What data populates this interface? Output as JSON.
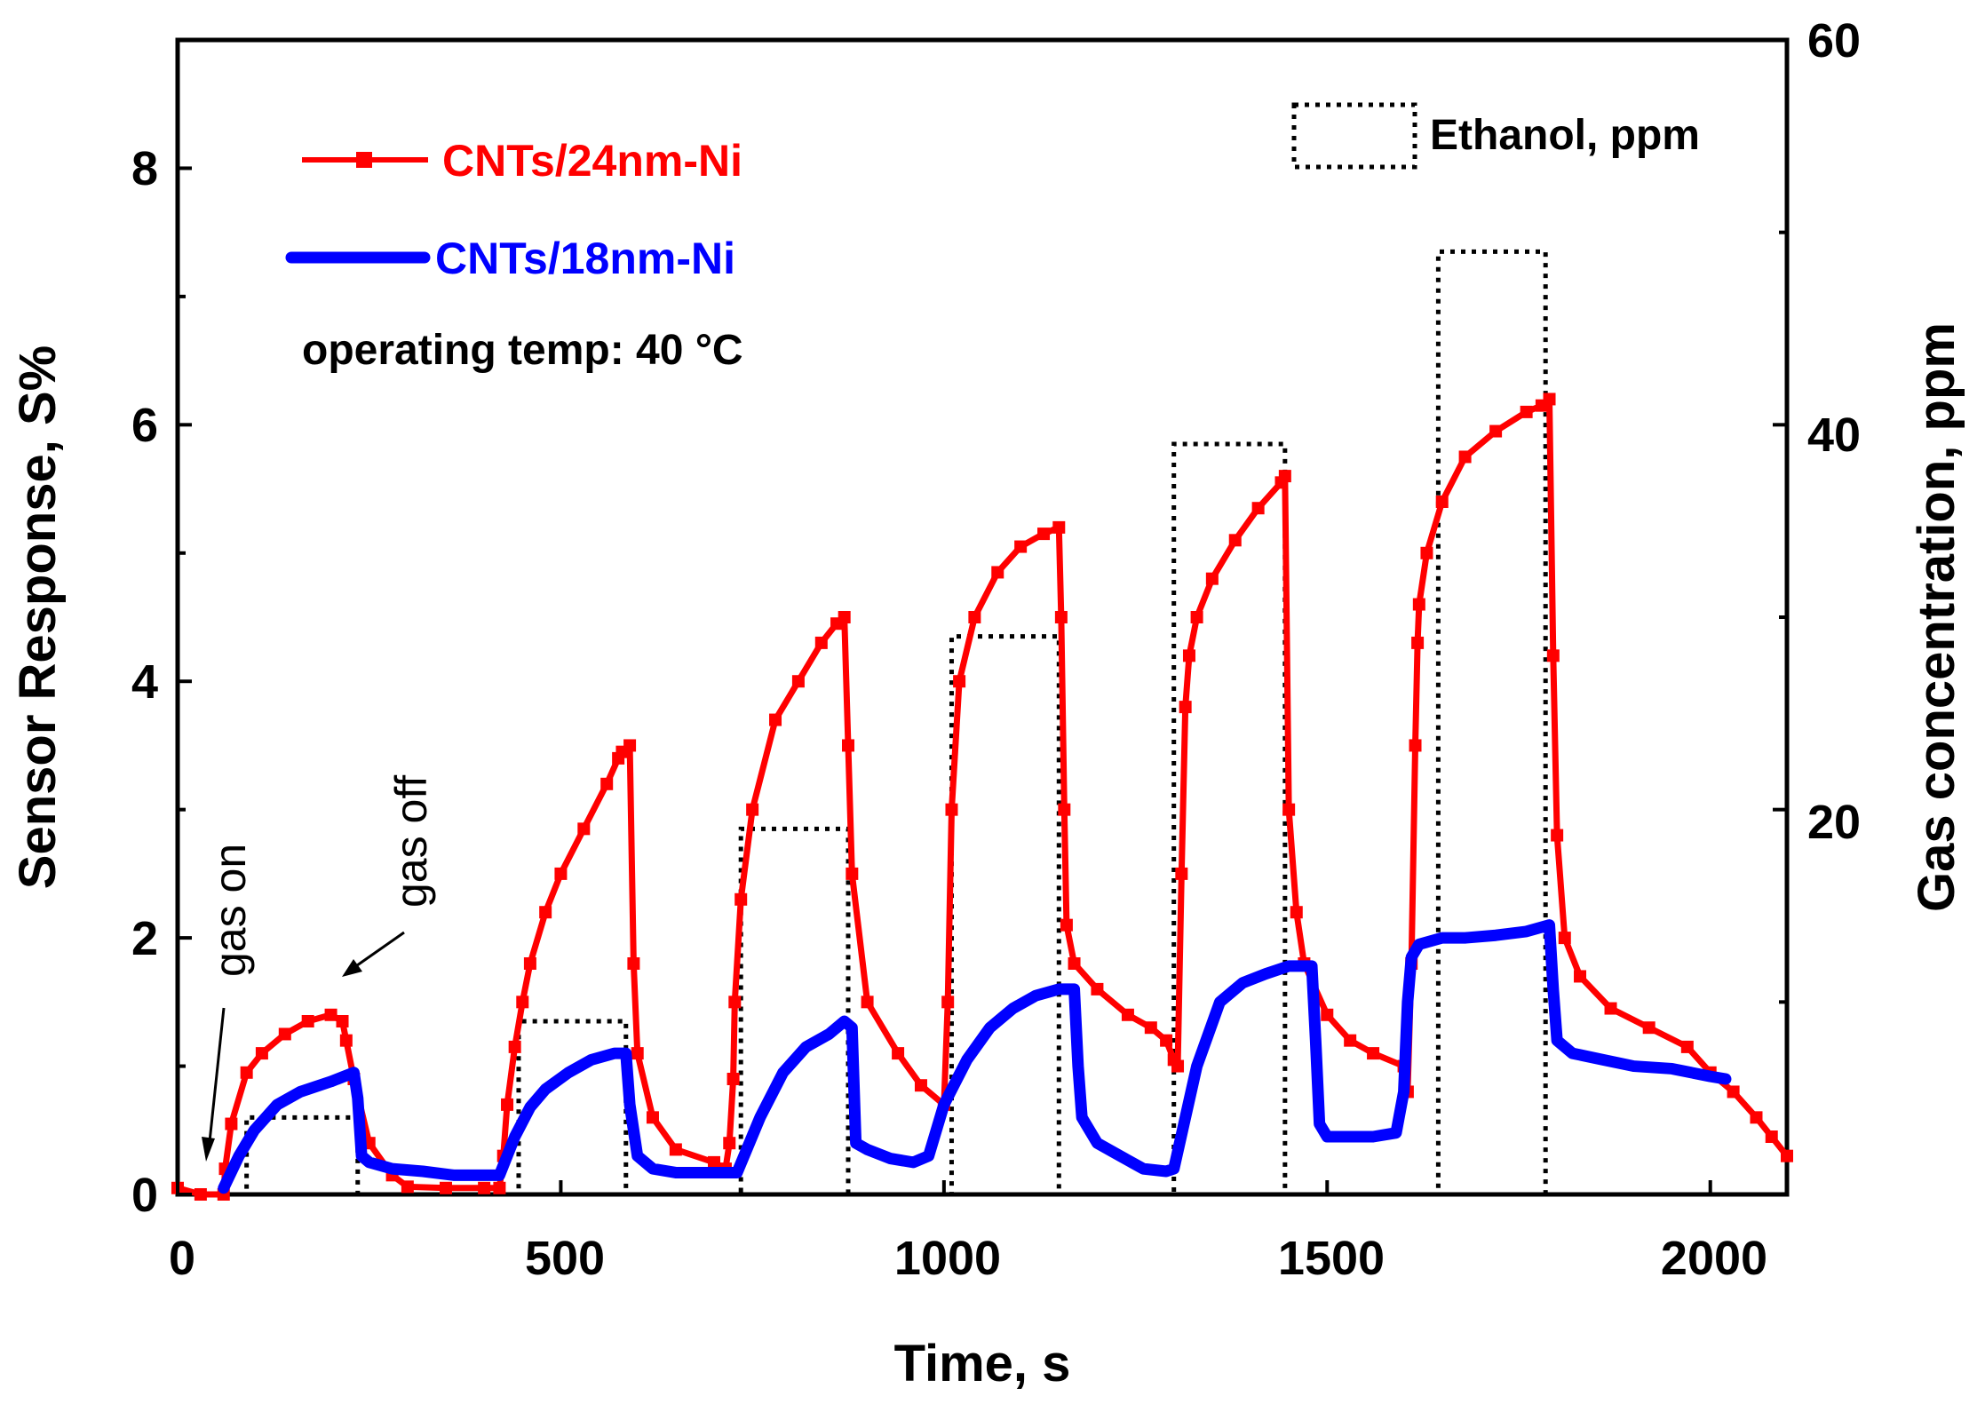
{
  "chart_data": {
    "type": "line",
    "title": "",
    "xlabel": "Time, s",
    "ylabel": "Sensor Response, S%",
    "ylabel_right": "Gas concentration, ppm",
    "xlim": [
      0,
      2100
    ],
    "ylim": [
      0,
      9
    ],
    "ylim_right": [
      0,
      60
    ],
    "xticks": [
      0,
      500,
      1000,
      1500,
      2000
    ],
    "yticks": [
      0,
      2,
      4,
      6,
      8
    ],
    "yticks_right": [
      20,
      40,
      60
    ],
    "xtick_labels": [
      "0",
      "500",
      "1000",
      "1500",
      "2000"
    ],
    "ytick_labels": [
      "0",
      "2",
      "4",
      "6",
      "8"
    ],
    "ytick_labels_right": [
      "20",
      "40",
      "60"
    ],
    "legend_location": "top-left",
    "note": "operating temp: 40 °C",
    "annotations": [
      {
        "text": "gas on",
        "x": 35,
        "y": 0.3
      },
      {
        "text": "gas off",
        "x": 210,
        "y": 1.8
      }
    ],
    "series": [
      {
        "name": "CNTs/24nm-Ni",
        "axis": "left",
        "color": "#ff0000",
        "marker": "square",
        "x": [
          0,
          30,
          60,
          62,
          70,
          90,
          110,
          140,
          170,
          200,
          215,
          220,
          230,
          250,
          280,
          300,
          350,
          400,
          420,
          425,
          430,
          440,
          450,
          460,
          480,
          500,
          530,
          560,
          575,
          580,
          590,
          595,
          600,
          620,
          650,
          700,
          715,
          720,
          725,
          727,
          735,
          750,
          780,
          810,
          840,
          860,
          870,
          875,
          880,
          900,
          940,
          970,
          1000,
          1005,
          1010,
          1020,
          1040,
          1070,
          1100,
          1130,
          1150,
          1153,
          1157,
          1160,
          1170,
          1200,
          1240,
          1270,
          1290,
          1300,
          1305,
          1310,
          1315,
          1320,
          1330,
          1350,
          1380,
          1410,
          1440,
          1445,
          1450,
          1460,
          1470,
          1500,
          1530,
          1560,
          1600,
          1605,
          1610,
          1615,
          1618,
          1620,
          1630,
          1650,
          1680,
          1720,
          1760,
          1780,
          1790,
          1795,
          1800,
          1810,
          1830,
          1870,
          1920,
          1970,
          2000,
          2030,
          2060,
          2080,
          2100
        ],
        "values": [
          0.05,
          0.0,
          0.0,
          0.2,
          0.55,
          0.95,
          1.1,
          1.25,
          1.35,
          1.4,
          1.35,
          1.2,
          0.9,
          0.4,
          0.15,
          0.06,
          0.05,
          0.05,
          0.05,
          0.3,
          0.7,
          1.15,
          1.5,
          1.8,
          2.2,
          2.5,
          2.85,
          3.2,
          3.4,
          3.45,
          3.5,
          1.8,
          1.1,
          0.6,
          0.35,
          0.25,
          0.2,
          0.4,
          0.9,
          1.5,
          2.3,
          3.0,
          3.7,
          4.0,
          4.3,
          4.45,
          4.5,
          3.5,
          2.5,
          1.5,
          1.1,
          0.85,
          0.7,
          1.5,
          3.0,
          4.0,
          4.5,
          4.85,
          5.05,
          5.15,
          5.2,
          4.5,
          3.0,
          2.1,
          1.8,
          1.6,
          1.4,
          1.3,
          1.2,
          1.05,
          1.0,
          2.5,
          3.8,
          4.2,
          4.5,
          4.8,
          5.1,
          5.35,
          5.55,
          5.6,
          3.0,
          2.2,
          1.8,
          1.4,
          1.2,
          1.1,
          1.0,
          0.8,
          1.8,
          3.5,
          4.3,
          4.6,
          5.0,
          5.4,
          5.75,
          5.95,
          6.1,
          6.15,
          6.2,
          4.2,
          2.8,
          2.0,
          1.7,
          1.45,
          1.3,
          1.15,
          0.95,
          0.8,
          0.6,
          0.45,
          0.3
        ]
      },
      {
        "name": "CNTs/18nm-Ni",
        "axis": "left",
        "color": "#0000ff",
        "marker": "none",
        "x": [
          60,
          80,
          100,
          130,
          160,
          200,
          230,
          235,
          240,
          250,
          280,
          320,
          360,
          400,
          420,
          440,
          460,
          480,
          510,
          540,
          570,
          585,
          590,
          600,
          620,
          650,
          700,
          730,
          760,
          790,
          820,
          850,
          870,
          880,
          885,
          900,
          930,
          960,
          980,
          1000,
          1030,
          1060,
          1090,
          1120,
          1150,
          1170,
          1175,
          1180,
          1200,
          1230,
          1260,
          1290,
          1300,
          1330,
          1360,
          1390,
          1420,
          1450,
          1480,
          1485,
          1490,
          1500,
          1530,
          1560,
          1590,
          1600,
          1605,
          1610,
          1620,
          1650,
          1680,
          1720,
          1760,
          1790,
          1795,
          1800,
          1820,
          1860,
          1900,
          1950,
          2000,
          2020
        ],
        "values": [
          0.05,
          0.3,
          0.5,
          0.7,
          0.8,
          0.88,
          0.95,
          0.75,
          0.3,
          0.25,
          0.2,
          0.18,
          0.15,
          0.15,
          0.15,
          0.45,
          0.68,
          0.82,
          0.95,
          1.05,
          1.1,
          1.1,
          0.7,
          0.3,
          0.2,
          0.17,
          0.17,
          0.17,
          0.6,
          0.95,
          1.15,
          1.25,
          1.35,
          1.3,
          0.4,
          0.35,
          0.28,
          0.25,
          0.3,
          0.7,
          1.05,
          1.3,
          1.45,
          1.55,
          1.6,
          1.6,
          1.0,
          0.6,
          0.4,
          0.3,
          0.2,
          0.18,
          0.2,
          1.0,
          1.5,
          1.65,
          1.72,
          1.78,
          1.78,
          1.2,
          0.55,
          0.45,
          0.45,
          0.45,
          0.48,
          0.8,
          1.5,
          1.85,
          1.95,
          2.0,
          2.0,
          2.02,
          2.05,
          2.1,
          1.6,
          1.2,
          1.1,
          1.05,
          1.0,
          0.98,
          0.92,
          0.9
        ]
      },
      {
        "name": "Ethanol, ppm",
        "axis": "right",
        "color": "#000000",
        "style": "dotted",
        "pulses": [
          {
            "start": 90,
            "end": 235,
            "ppm": 4
          },
          {
            "start": 445,
            "end": 585,
            "ppm": 9
          },
          {
            "start": 735,
            "end": 875,
            "ppm": 19
          },
          {
            "start": 1010,
            "end": 1150,
            "ppm": 29
          },
          {
            "start": 1300,
            "end": 1445,
            "ppm": 39
          },
          {
            "start": 1645,
            "end": 1785,
            "ppm": 49
          }
        ]
      }
    ]
  }
}
